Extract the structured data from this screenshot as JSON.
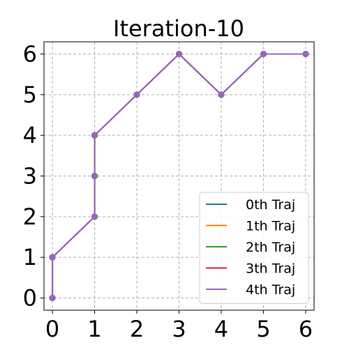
{
  "chart_data": {
    "type": "line",
    "title": "Iteration-10",
    "xlabel": "",
    "ylabel": "",
    "xlim": [
      -0.2,
      6.2
    ],
    "ylim": [
      -0.3,
      6.3
    ],
    "xticks": [
      0,
      1,
      2,
      3,
      4,
      5,
      6
    ],
    "yticks": [
      0,
      1,
      2,
      3,
      4,
      5,
      6
    ],
    "grid": true,
    "grid_style": "dashed",
    "legend_position": "lower-right",
    "markers": "circle",
    "series": [
      {
        "name": "0th Traj",
        "color": "#1f77b4",
        "x": [
          0,
          0,
          1,
          1,
          1,
          2,
          3,
          4,
          5,
          6
        ],
        "y": [
          0,
          1,
          2,
          3,
          4,
          5,
          6,
          5,
          6,
          6
        ]
      },
      {
        "name": "1th Traj",
        "color": "#ff7f0e",
        "x": [
          0,
          0,
          1,
          1,
          1,
          2,
          3,
          4,
          5,
          6
        ],
        "y": [
          0,
          1,
          2,
          3,
          4,
          5,
          6,
          5,
          6,
          6
        ]
      },
      {
        "name": "2th Traj",
        "color": "#2ca02c",
        "x": [
          0,
          0,
          1,
          1,
          1,
          2,
          3,
          4,
          5,
          6
        ],
        "y": [
          0,
          1,
          2,
          3,
          4,
          5,
          6,
          5,
          6,
          6
        ]
      },
      {
        "name": "3th Traj",
        "color": "#d62728",
        "x": [
          0,
          0,
          1,
          1,
          1,
          2,
          3,
          4,
          5,
          6
        ],
        "y": [
          0,
          1,
          2,
          3,
          4,
          5,
          6,
          5,
          6,
          6
        ]
      },
      {
        "name": "4th Traj",
        "color": "#9467bd",
        "x": [
          0,
          0,
          1,
          1,
          1,
          2,
          3,
          4,
          5,
          6
        ],
        "y": [
          0,
          1,
          2,
          3,
          4,
          5,
          6,
          5,
          6,
          6
        ]
      }
    ]
  }
}
